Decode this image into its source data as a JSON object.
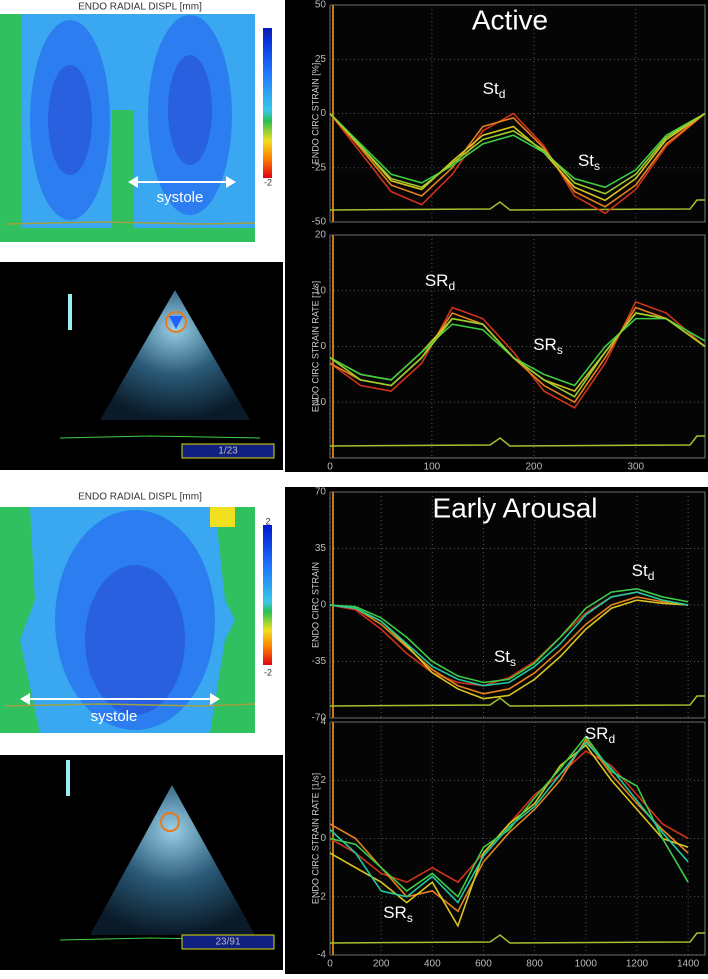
{
  "chart_data": [
    {
      "type": "line",
      "title": "Active",
      "ylabel": "ENDO CIRC STRAIN [%]",
      "x": [
        0,
        30,
        60,
        90,
        120,
        150,
        180,
        210,
        240,
        270,
        300,
        330,
        368
      ],
      "xlim": [
        0,
        368
      ],
      "xticks": [
        0,
        100,
        200,
        300
      ],
      "ylim": [
        -50,
        50
      ],
      "yticks": [
        -50,
        -25,
        0,
        25,
        50
      ],
      "grid": true,
      "series": [
        {
          "color": "#d0321a",
          "values": [
            0,
            -18,
            -36,
            -42,
            -28,
            -8,
            0,
            -15,
            -38,
            -46,
            -35,
            -15,
            0
          ]
        },
        {
          "color": "#e8801c",
          "values": [
            0,
            -16,
            -33,
            -38,
            -25,
            -6,
            -2,
            -16,
            -36,
            -43,
            -33,
            -14,
            0
          ]
        },
        {
          "color": "#d8c420",
          "values": [
            0,
            -15,
            -31,
            -35,
            -22,
            -10,
            -6,
            -18,
            -34,
            -40,
            -30,
            -12,
            0
          ]
        },
        {
          "color": "#3ccc46",
          "values": [
            0,
            -14,
            -28,
            -32,
            -24,
            -14,
            -10,
            -18,
            -30,
            -34,
            -26,
            -10,
            0
          ]
        },
        {
          "color": "#9ccc2c",
          "values": [
            0,
            -15,
            -30,
            -34,
            -23,
            -12,
            -8,
            -17,
            -32,
            -37,
            -28,
            -11,
            0
          ]
        }
      ],
      "annotations": [
        {
          "text": "St",
          "sub": "d"
        },
        {
          "text": "St",
          "sub": "s"
        }
      ]
    },
    {
      "type": "line",
      "ylabel": "ENDO CIRC STRAIN RATE [1/s]",
      "x": [
        0,
        30,
        60,
        90,
        120,
        150,
        180,
        210,
        240,
        270,
        300,
        330,
        368
      ],
      "xlim": [
        0,
        368
      ],
      "xticks": [
        0,
        100,
        200,
        300
      ],
      "ylim": [
        -20,
        20
      ],
      "yticks": [
        -10,
        0,
        10,
        20
      ],
      "grid": true,
      "series": [
        {
          "color": "#d0321a",
          "values": [
            -3,
            -7,
            -8,
            -3,
            7,
            5,
            -1,
            -8,
            -11,
            -3,
            8,
            6,
            0
          ]
        },
        {
          "color": "#e8801c",
          "values": [
            -3,
            -6,
            -7,
            -2,
            6,
            4,
            -2,
            -7,
            -10,
            -2,
            7,
            5,
            0
          ]
        },
        {
          "color": "#d8c420",
          "values": [
            -2,
            -5,
            -6,
            -1,
            5,
            4,
            -2,
            -6,
            -8,
            -1,
            6,
            5,
            0
          ]
        },
        {
          "color": "#3ccc46",
          "values": [
            -2,
            -5,
            -6,
            -1,
            4,
            3,
            -2,
            -5,
            -7,
            0,
            5,
            5,
            1
          ]
        },
        {
          "color": "#9ccc2c",
          "values": [
            -2,
            -6,
            -7,
            -2,
            5,
            4,
            -2,
            -6,
            -9,
            -1,
            6,
            5,
            0
          ]
        }
      ],
      "annotations": [
        {
          "text": "SR",
          "sub": "d"
        },
        {
          "text": "SR",
          "sub": "s"
        }
      ]
    },
    {
      "type": "line",
      "title": "Early Arousal",
      "ylabel": "ENDO CIRC STRAIN",
      "x": [
        0,
        100,
        200,
        300,
        400,
        500,
        600,
        700,
        800,
        900,
        1000,
        1100,
        1200,
        1300,
        1400
      ],
      "xlim": [
        0,
        1466
      ],
      "xticks": [
        0,
        200,
        400,
        600,
        800,
        1000,
        1200,
        1400
      ],
      "ylim": [
        -70,
        70
      ],
      "yticks": [
        -70,
        -35,
        0,
        35,
        70
      ],
      "grid": true,
      "series": [
        {
          "color": "#d0321a",
          "values": [
            0,
            -3,
            -15,
            -30,
            -42,
            -48,
            -50,
            -45,
            -35,
            -20,
            -5,
            5,
            8,
            3,
            0
          ]
        },
        {
          "color": "#e8801c",
          "values": [
            0,
            -2,
            -12,
            -26,
            -40,
            -50,
            -55,
            -52,
            -42,
            -28,
            -12,
            0,
            5,
            2,
            0
          ]
        },
        {
          "color": "#d8c420",
          "values": [
            0,
            -2,
            -10,
            -25,
            -42,
            -52,
            -58,
            -56,
            -46,
            -32,
            -15,
            -2,
            3,
            1,
            0
          ]
        },
        {
          "color": "#3ccc46",
          "values": [
            0,
            -1,
            -8,
            -20,
            -35,
            -44,
            -48,
            -46,
            -36,
            -20,
            -2,
            8,
            10,
            5,
            2
          ]
        },
        {
          "color": "#20c8a0",
          "values": [
            0,
            -2,
            -10,
            -24,
            -38,
            -46,
            -50,
            -48,
            -38,
            -24,
            -6,
            5,
            8,
            3,
            0
          ]
        }
      ],
      "annotations": [
        {
          "text": "St",
          "sub": "d"
        },
        {
          "text": "St",
          "sub": "s"
        }
      ]
    },
    {
      "type": "line",
      "ylabel": "ENDO CIRC STRAIN RATE [1/s]",
      "x": [
        0,
        100,
        200,
        300,
        400,
        500,
        600,
        700,
        800,
        900,
        1000,
        1100,
        1200,
        1300,
        1400
      ],
      "xlim": [
        0,
        1466
      ],
      "xticks": [
        0,
        200,
        400,
        600,
        800,
        1000,
        1200,
        1400
      ],
      "ylim": [
        -4,
        4
      ],
      "yticks": [
        -4,
        -2,
        0,
        2,
        4
      ],
      "grid": true,
      "series": [
        {
          "color": "#d0321a",
          "values": [
            0,
            -0.5,
            -1.2,
            -1.5,
            -1,
            -1.5,
            -0.5,
            0.5,
            1.5,
            2.2,
            3,
            2.5,
            1.5,
            0.5,
            0
          ]
        },
        {
          "color": "#e8801c",
          "values": [
            0.5,
            0,
            -1,
            -2,
            -1.8,
            -2.5,
            -0.8,
            0.2,
            1,
            2,
            3.4,
            2.2,
            1.2,
            0.3,
            -0.5
          ]
        },
        {
          "color": "#d8c420",
          "values": [
            -0.5,
            -1,
            -1.5,
            -2.2,
            -1.5,
            -3,
            -0.5,
            0.5,
            1.2,
            2.5,
            3.2,
            2,
            1,
            0,
            -0.3
          ]
        },
        {
          "color": "#3ccc46",
          "values": [
            0,
            -0.2,
            -1,
            -1.8,
            -1.2,
            -2,
            -0.3,
            0.3,
            1.4,
            2.4,
            3.5,
            2.3,
            1.8,
            0,
            -1.5
          ]
        },
        {
          "color": "#20c8a0",
          "values": [
            0.3,
            -0.5,
            -1.8,
            -2,
            -1.3,
            -2.2,
            -0.6,
            0.4,
            1.1,
            2.2,
            3.3,
            2.4,
            1.3,
            0.2,
            -0.8
          ]
        }
      ],
      "annotations": [
        {
          "text": "SR",
          "sub": "d"
        },
        {
          "text": "SR",
          "sub": "s"
        }
      ]
    }
  ],
  "maps": [
    {
      "title": "ENDO RADIAL DISPL [mm]",
      "scale": [
        2,
        -2
      ],
      "label": "systole",
      "frame": "1/23"
    },
    {
      "title": "ENDO RADIAL DISPL [mm]",
      "scale": [
        2,
        -2
      ],
      "label": "systole",
      "frame": "23/91"
    }
  ]
}
